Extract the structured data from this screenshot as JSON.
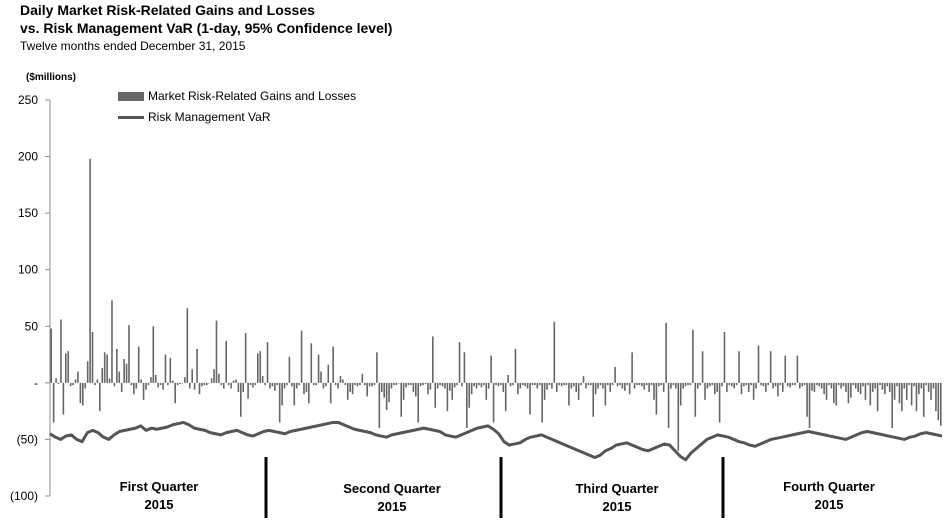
{
  "header": {
    "title_line1": "Daily Market Risk-Related Gains and Losses",
    "title_line2": "vs. Risk Management VaR (1-day, 95% Confidence level)",
    "subtitle": "Twelve months ended December 31, 2015"
  },
  "chart_data": {
    "type": "bar",
    "ylabel": "($millions)",
    "ylim": [
      -100,
      250
    ],
    "yticks": [
      250,
      200,
      150,
      100,
      50,
      0,
      -50,
      -100
    ],
    "ytick_labels": [
      "250",
      "200",
      "150",
      "100",
      "50",
      "-",
      "(50)",
      "(100)"
    ],
    "grid": false,
    "legend_placement": "top-left",
    "legend": [
      {
        "label": "Market Risk-Related Gains and Losses",
        "style": "bar",
        "color": "#666666"
      },
      {
        "label": "Risk Management VaR",
        "style": "line",
        "color": "#555555"
      }
    ],
    "quarters": [
      {
        "line1": "First Quarter",
        "line2": "2015"
      },
      {
        "line1": "Second Quarter",
        "line2": "2015"
      },
      {
        "line1": "Third Quarter",
        "line2": "2015"
      },
      {
        "line1": "Fourth Quarter",
        "line2": "2015"
      }
    ],
    "series": [
      {
        "name": "Market Risk-Related Gains and Losses",
        "style": "bar",
        "color": "#666666",
        "values": [
          48,
          -35,
          4,
          -1,
          56,
          -28,
          26,
          28,
          -3,
          -2,
          3,
          10,
          -18,
          -20,
          -5,
          19,
          198,
          45,
          -2,
          3,
          -25,
          13,
          27,
          25,
          4,
          73,
          -3,
          30,
          10,
          -8,
          21,
          17,
          51,
          -2,
          -10,
          -5,
          32,
          3,
          -15,
          -6,
          -2,
          5,
          50,
          7,
          -4,
          -2,
          -6,
          25,
          -2,
          22,
          2,
          -18,
          -2,
          -1,
          0,
          5,
          66,
          -5,
          12,
          -6,
          30,
          -10,
          -3,
          -2,
          -2,
          0,
          4,
          12,
          55,
          8,
          -2,
          -5,
          37,
          -2,
          -5,
          2,
          3,
          -8,
          -30,
          -8,
          44,
          -14,
          -2,
          -4,
          -2,
          26,
          28,
          6,
          -2,
          36,
          -5,
          -3,
          -7,
          -2,
          -35,
          -20,
          -5,
          -2,
          23,
          -3,
          -20,
          -5,
          -2,
          46,
          -10,
          -8,
          -18,
          35,
          -2,
          -2,
          25,
          10,
          -5,
          -3,
          16,
          -18,
          32,
          -2,
          -5,
          6,
          3,
          -2,
          -15,
          -8,
          -10,
          -2,
          -3,
          -2,
          8,
          -2,
          -12,
          -3,
          -3,
          -2,
          27,
          -40,
          -8,
          -13,
          -24,
          -17,
          -5,
          -2,
          -2,
          0,
          -30,
          -15,
          -4,
          -2,
          -2,
          -8,
          -12,
          -35,
          -3,
          -2,
          -1,
          -10,
          -6,
          41,
          -22,
          -5,
          -2,
          -3,
          -5,
          -25,
          -7,
          -15,
          -4,
          -2,
          36,
          -3,
          27,
          -40,
          -22,
          -10,
          -3,
          -5,
          -2,
          -4,
          -2,
          -15,
          -5,
          24,
          -35,
          -2,
          -3,
          -2,
          -8,
          -25,
          7,
          -3,
          -2,
          30,
          -10,
          -5,
          -2,
          -3,
          -5,
          -28,
          -2,
          -2,
          -5,
          -2,
          -35,
          -15,
          -6,
          -2,
          -5,
          54,
          -8,
          -2,
          -3,
          -2,
          -2,
          -20,
          -5,
          -3,
          -8,
          -15,
          -2,
          6,
          -5,
          -2,
          -2,
          -30,
          -10,
          -5,
          -2,
          -5,
          -20,
          -2,
          -8,
          -2,
          14,
          -3,
          -2,
          -5,
          -7,
          -2,
          -10,
          27,
          -5,
          -2,
          -2,
          -3,
          -6,
          -2,
          -8,
          -2,
          -15,
          -28,
          -3,
          -2,
          -8,
          53,
          -40,
          -5,
          -2,
          -5,
          -60,
          -20,
          -5,
          -3,
          -2,
          -2,
          47,
          -30,
          -5,
          -2,
          28,
          -15,
          -5,
          -3,
          -2,
          -10,
          -8,
          -35,
          -3,
          45,
          -8,
          -2,
          -3,
          -5,
          -2,
          28,
          -10,
          -3,
          -2,
          -8,
          -2,
          -15,
          -5,
          33,
          -2,
          -3,
          -8,
          -2,
          28,
          -5,
          -3,
          -12,
          -2,
          -8,
          24,
          -3,
          -4,
          -2,
          -2,
          24,
          -5,
          -3,
          -2,
          -30,
          -40,
          -7,
          -8,
          -2,
          -3,
          -5,
          -10,
          -15,
          -2,
          -5,
          -18,
          -20,
          -2,
          -5,
          -3,
          -8,
          -18,
          -13,
          -2,
          -5,
          -8,
          -10,
          -3,
          -15,
          -2,
          -20,
          -8,
          -5,
          -25,
          -2,
          -6,
          -10,
          -3,
          -8,
          -40,
          -15,
          -3,
          -18,
          -25,
          -5,
          -15,
          -2,
          -20,
          -3,
          -25,
          -10,
          -5,
          -30,
          -2,
          -8,
          -15,
          -5,
          -25,
          -33,
          -38
        ],
        "values_note": ""
      },
      {
        "name": "Risk Management VaR",
        "style": "line",
        "color": "#555555",
        "values": []
      }
    ]
  }
}
